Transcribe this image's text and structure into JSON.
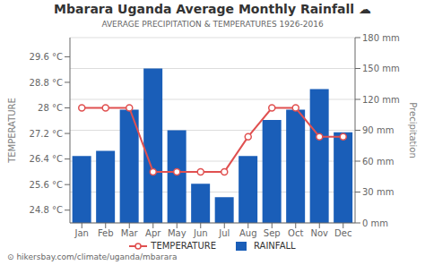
{
  "chart_data": {
    "type": "bar",
    "title": "Mbarara Uganda Average Monthly Rainfall ☁",
    "subtitle": "AVERAGE PRECIPITATION & TEMPERATURES 1926-2016",
    "categories": [
      "Jan",
      "Feb",
      "Mar",
      "Apr",
      "May",
      "Jun",
      "Jul",
      "Aug",
      "Sep",
      "Oct",
      "Nov",
      "Dec"
    ],
    "series": [
      {
        "name": "TEMPERATURE",
        "type": "line",
        "color": "#e05050",
        "marker": "circle",
        "axis": "y",
        "values": [
          28.0,
          28.0,
          28.0,
          26.0,
          26.0,
          26.0,
          26.0,
          27.1,
          28.0,
          28.0,
          27.1,
          27.1
        ]
      },
      {
        "name": "RAINFALL",
        "type": "bar",
        "color": "#1a5eb8",
        "axis": "y2",
        "values": [
          65,
          70,
          110,
          150,
          90,
          38,
          25,
          65,
          100,
          110,
          130,
          88
        ]
      }
    ],
    "ylabel": "TEMPERATURE",
    "y2label": "Precipitation",
    "ylim": [
      24.4,
      30.2
    ],
    "yticks": [
      {
        "value": 24.8,
        "label": "24.8 °C"
      },
      {
        "value": 25.6,
        "label": "25.6 °C"
      },
      {
        "value": 26.4,
        "label": "26.4 °C"
      },
      {
        "value": 27.2,
        "label": "27.2 °C"
      },
      {
        "value": 28.0,
        "label": "28 °C"
      },
      {
        "value": 28.8,
        "label": "28.8 °C"
      },
      {
        "value": 29.6,
        "label": "29.6 °C"
      }
    ],
    "y2lim": [
      0,
      180
    ],
    "y2ticks": [
      {
        "value": 0,
        "label": "0 mm"
      },
      {
        "value": 30,
        "label": "30 mm"
      },
      {
        "value": 60,
        "label": "60 mm"
      },
      {
        "value": 90,
        "label": "90 mm"
      },
      {
        "value": 120,
        "label": "120 mm"
      },
      {
        "value": 150,
        "label": "150 mm"
      },
      {
        "value": 180,
        "label": "180 mm"
      }
    ],
    "grid": true,
    "legend": "bottom",
    "annotations": [
      "⊙ hikersbay.com/climate/uganda/mbarara"
    ]
  }
}
